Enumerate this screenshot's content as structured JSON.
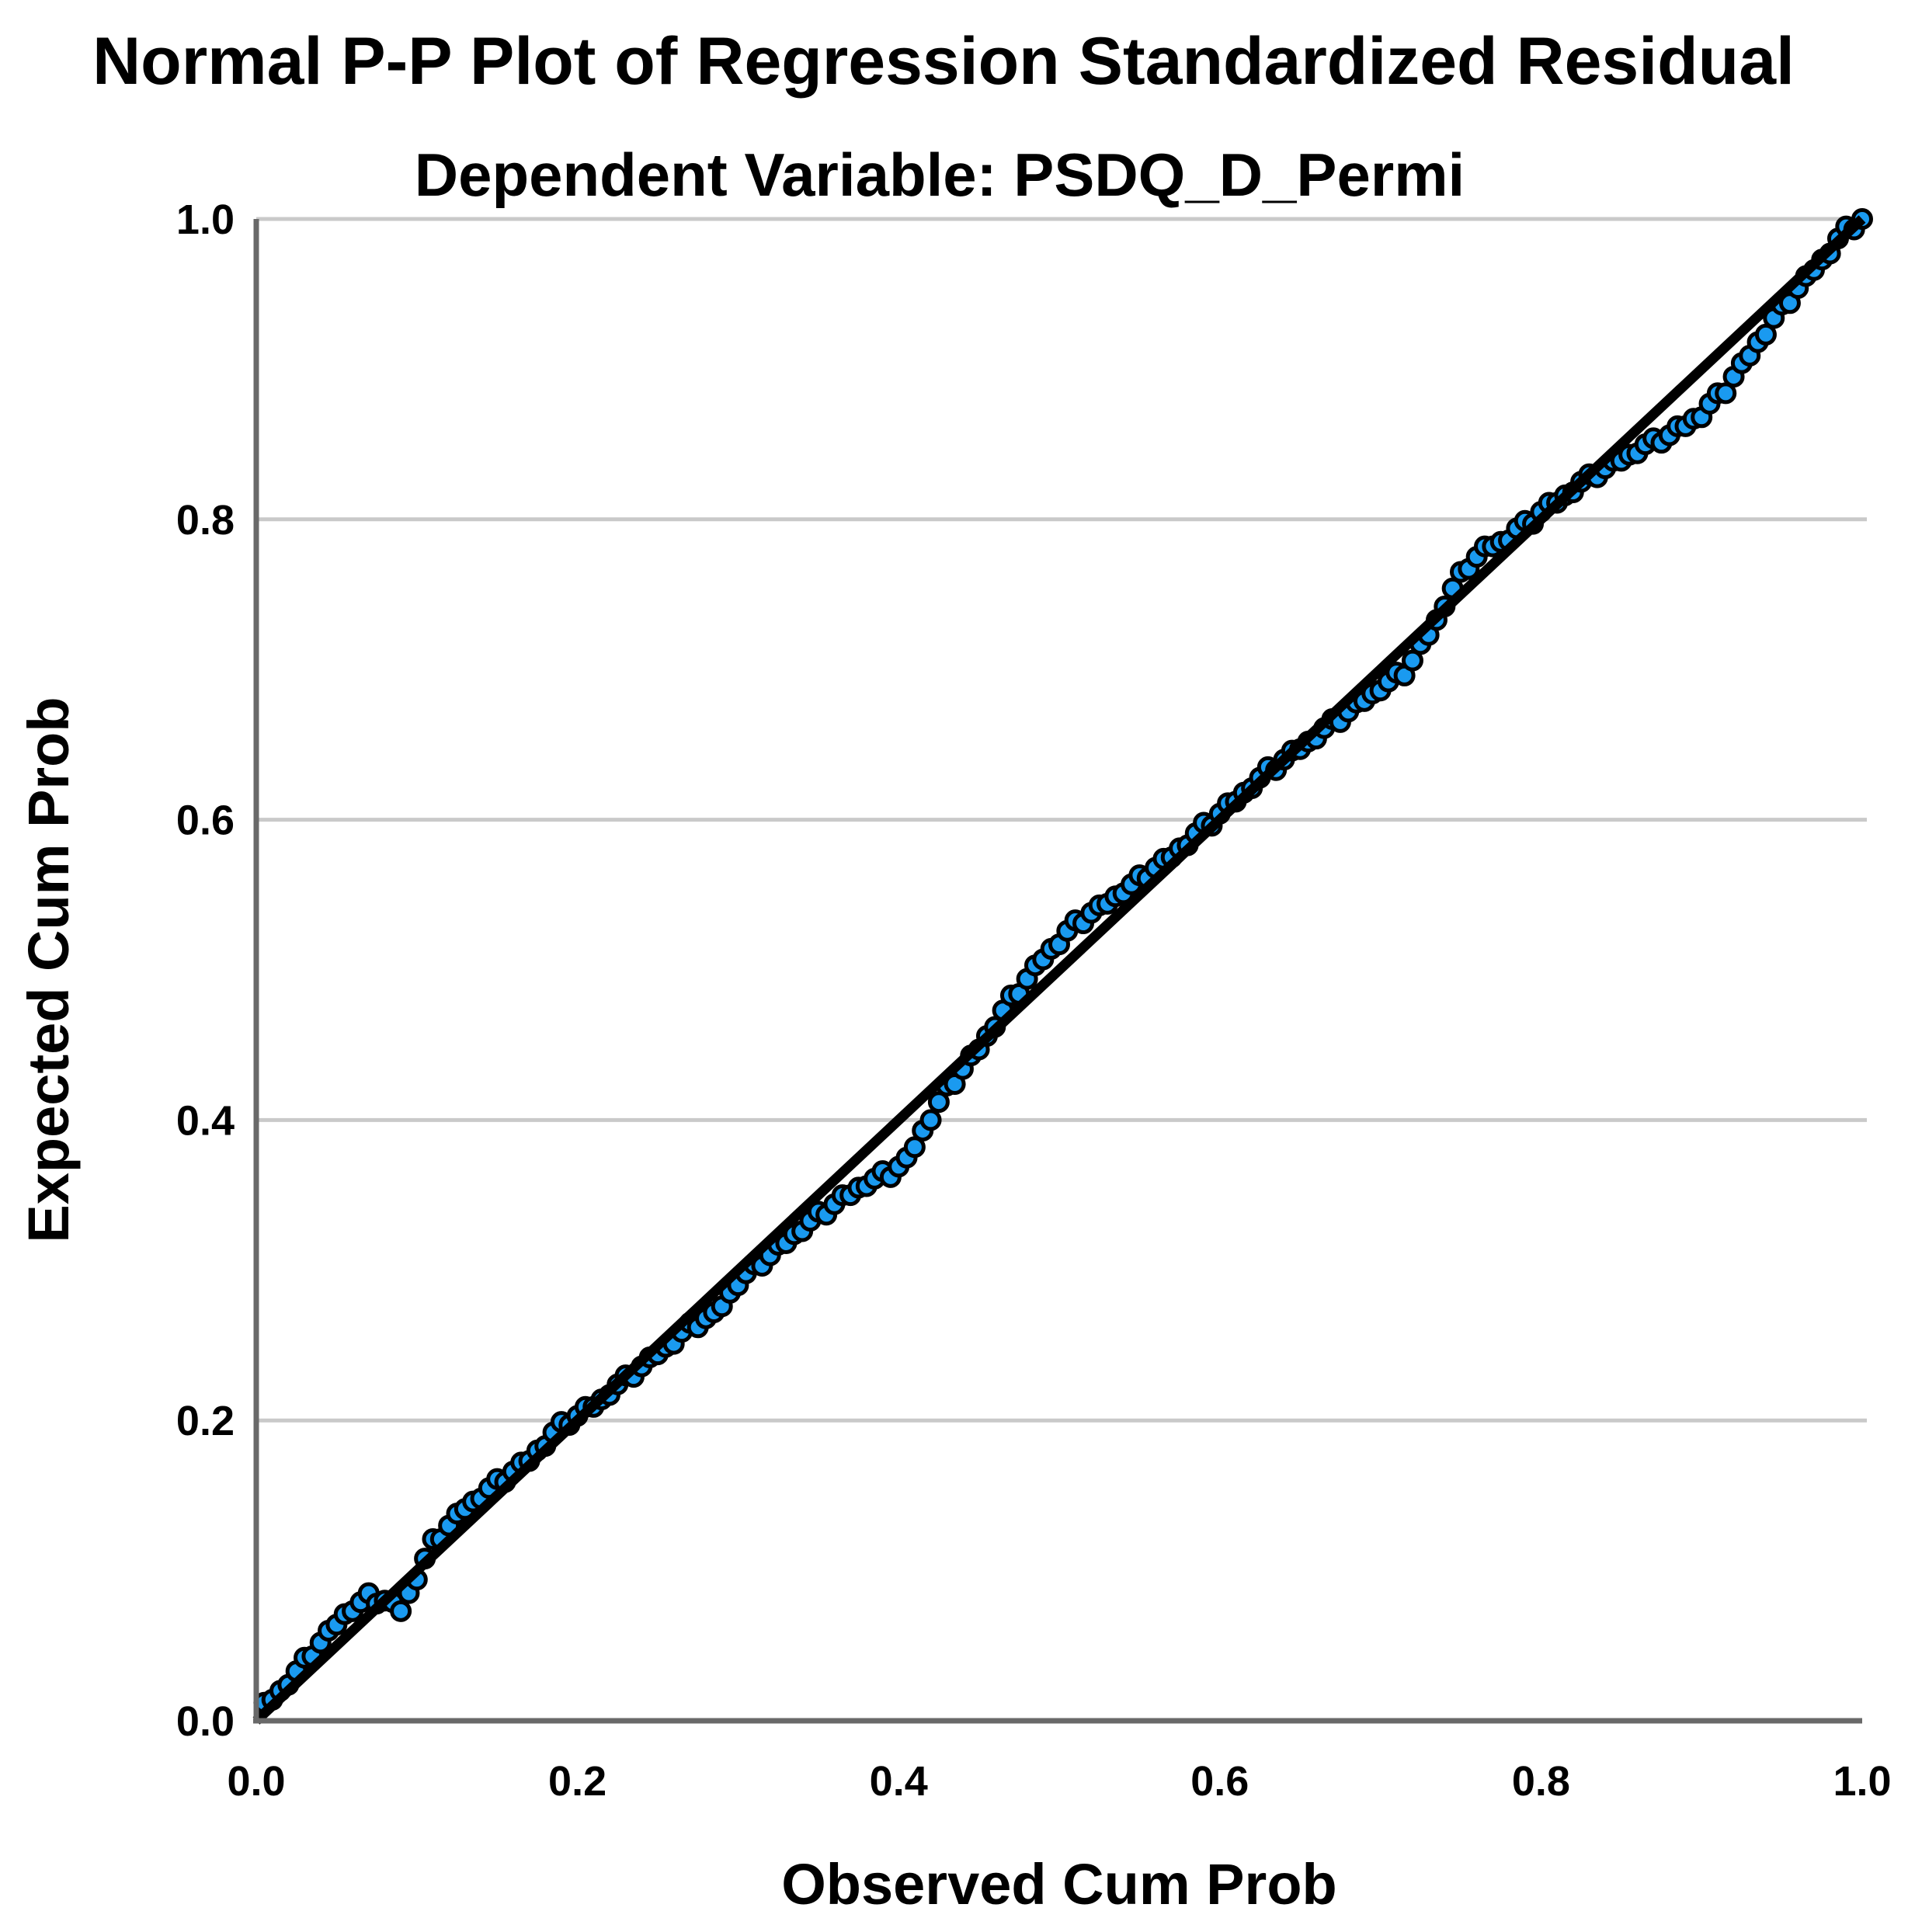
{
  "page": {
    "background": "#ffffff"
  },
  "chart_data": {
    "type": "scatter",
    "title": "Normal P-P Plot of Regression Standardized Residual",
    "subtitle": "Dependent Variable: PSDQ_D_Permi",
    "xlabel": "Observed Cum Prob",
    "ylabel": "Expected Cum Prob",
    "xlim": [
      0.0,
      1.0
    ],
    "ylim": [
      0.0,
      1.0
    ],
    "xticks": [
      "0.0",
      "0.2",
      "0.4",
      "0.6",
      "0.8",
      "1.0"
    ],
    "yticks": [
      "0.0",
      "0.2",
      "0.4",
      "0.6",
      "0.8",
      "1.0"
    ],
    "grid": "horizontal-only",
    "legend": "none",
    "colors": {
      "marker_fill": "#1a9af0",
      "marker_stroke": "#000000",
      "reference_line": "#000000",
      "grid_line": "#c9c9c9",
      "axis_line": "#696969",
      "text": "#000000"
    },
    "reference_line": {
      "from": [
        0.0,
        0.0
      ],
      "to": [
        1.0,
        1.0
      ]
    },
    "series": [
      {
        "name": "Standardized Residual",
        "points": [
          [
            0.005,
            0.012
          ],
          [
            0.01,
            0.014
          ],
          [
            0.015,
            0.02
          ],
          [
            0.02,
            0.024
          ],
          [
            0.025,
            0.033
          ],
          [
            0.03,
            0.042
          ],
          [
            0.035,
            0.043
          ],
          [
            0.04,
            0.052
          ],
          [
            0.045,
            0.06
          ],
          [
            0.05,
            0.064
          ],
          [
            0.055,
            0.071
          ],
          [
            0.06,
            0.073
          ],
          [
            0.065,
            0.079
          ],
          [
            0.07,
            0.085
          ],
          [
            0.075,
            0.078
          ],
          [
            0.08,
            0.08
          ],
          [
            0.085,
            0.079
          ],
          [
            0.09,
            0.073
          ],
          [
            0.095,
            0.085
          ],
          [
            0.1,
            0.094
          ],
          [
            0.105,
            0.108
          ],
          [
            0.11,
            0.121
          ],
          [
            0.115,
            0.121
          ],
          [
            0.12,
            0.13
          ],
          [
            0.125,
            0.138
          ],
          [
            0.13,
            0.141
          ],
          [
            0.135,
            0.146
          ],
          [
            0.14,
            0.148
          ],
          [
            0.145,
            0.155
          ],
          [
            0.15,
            0.161
          ],
          [
            0.155,
            0.159
          ],
          [
            0.16,
            0.166
          ],
          [
            0.165,
            0.172
          ],
          [
            0.17,
            0.173
          ],
          [
            0.175,
            0.18
          ],
          [
            0.18,
            0.183
          ],
          [
            0.185,
            0.192
          ],
          [
            0.19,
            0.199
          ],
          [
            0.195,
            0.197
          ],
          [
            0.2,
            0.203
          ],
          [
            0.205,
            0.209
          ],
          [
            0.21,
            0.209
          ],
          [
            0.215,
            0.214
          ],
          [
            0.22,
            0.217
          ],
          [
            0.225,
            0.224
          ],
          [
            0.23,
            0.23
          ],
          [
            0.235,
            0.229
          ],
          [
            0.24,
            0.236
          ],
          [
            0.245,
            0.242
          ],
          [
            0.25,
            0.244
          ],
          [
            0.255,
            0.249
          ],
          [
            0.26,
            0.251
          ],
          [
            0.265,
            0.259
          ],
          [
            0.27,
            0.265
          ],
          [
            0.275,
            0.262
          ],
          [
            0.28,
            0.268
          ],
          [
            0.285,
            0.272
          ],
          [
            0.29,
            0.276
          ],
          [
            0.295,
            0.285
          ],
          [
            0.3,
            0.29
          ],
          [
            0.305,
            0.298
          ],
          [
            0.31,
            0.304
          ],
          [
            0.315,
            0.303
          ],
          [
            0.32,
            0.31
          ],
          [
            0.325,
            0.317
          ],
          [
            0.33,
            0.318
          ],
          [
            0.335,
            0.324
          ],
          [
            0.34,
            0.326
          ],
          [
            0.345,
            0.333
          ],
          [
            0.35,
            0.339
          ],
          [
            0.355,
            0.337
          ],
          [
            0.36,
            0.344
          ],
          [
            0.365,
            0.35
          ],
          [
            0.37,
            0.35
          ],
          [
            0.375,
            0.355
          ],
          [
            0.38,
            0.356
          ],
          [
            0.385,
            0.361
          ],
          [
            0.39,
            0.366
          ],
          [
            0.395,
            0.362
          ],
          [
            0.4,
            0.369
          ],
          [
            0.405,
            0.375
          ],
          [
            0.41,
            0.382
          ],
          [
            0.415,
            0.393
          ],
          [
            0.42,
            0.4
          ],
          [
            0.425,
            0.412
          ],
          [
            0.43,
            0.423
          ],
          [
            0.435,
            0.424
          ],
          [
            0.44,
            0.434
          ],
          [
            0.445,
            0.443
          ],
          [
            0.45,
            0.447
          ],
          [
            0.455,
            0.456
          ],
          [
            0.46,
            0.462
          ],
          [
            0.465,
            0.473
          ],
          [
            0.47,
            0.483
          ],
          [
            0.475,
            0.484
          ],
          [
            0.48,
            0.494
          ],
          [
            0.485,
            0.503
          ],
          [
            0.49,
            0.507
          ],
          [
            0.495,
            0.514
          ],
          [
            0.5,
            0.517
          ],
          [
            0.505,
            0.526
          ],
          [
            0.51,
            0.533
          ],
          [
            0.515,
            0.531
          ],
          [
            0.52,
            0.538
          ],
          [
            0.525,
            0.543
          ],
          [
            0.53,
            0.544
          ],
          [
            0.535,
            0.549
          ],
          [
            0.54,
            0.551
          ],
          [
            0.545,
            0.557
          ],
          [
            0.55,
            0.563
          ],
          [
            0.555,
            0.561
          ],
          [
            0.56,
            0.568
          ],
          [
            0.565,
            0.574
          ],
          [
            0.57,
            0.575
          ],
          [
            0.575,
            0.581
          ],
          [
            0.58,
            0.583
          ],
          [
            0.585,
            0.591
          ],
          [
            0.59,
            0.598
          ],
          [
            0.595,
            0.596
          ],
          [
            0.6,
            0.604
          ],
          [
            0.605,
            0.611
          ],
          [
            0.61,
            0.612
          ],
          [
            0.615,
            0.618
          ],
          [
            0.62,
            0.621
          ],
          [
            0.625,
            0.628
          ],
          [
            0.63,
            0.635
          ],
          [
            0.635,
            0.633
          ],
          [
            0.64,
            0.64
          ],
          [
            0.645,
            0.646
          ],
          [
            0.65,
            0.647
          ],
          [
            0.655,
            0.652
          ],
          [
            0.66,
            0.654
          ],
          [
            0.665,
            0.661
          ],
          [
            0.67,
            0.667
          ],
          [
            0.675,
            0.665
          ],
          [
            0.68,
            0.672
          ],
          [
            0.685,
            0.678
          ],
          [
            0.69,
            0.679
          ],
          [
            0.695,
            0.684
          ],
          [
            0.7,
            0.686
          ],
          [
            0.705,
            0.692
          ],
          [
            0.71,
            0.698
          ],
          [
            0.715,
            0.696
          ],
          [
            0.72,
            0.706
          ],
          [
            0.725,
            0.717
          ],
          [
            0.73,
            0.723
          ],
          [
            0.735,
            0.733
          ],
          [
            0.74,
            0.742
          ],
          [
            0.745,
            0.754
          ],
          [
            0.75,
            0.765
          ],
          [
            0.755,
            0.767
          ],
          [
            0.76,
            0.775
          ],
          [
            0.765,
            0.782
          ],
          [
            0.77,
            0.782
          ],
          [
            0.775,
            0.785
          ],
          [
            0.78,
            0.786
          ],
          [
            0.785,
            0.794
          ],
          [
            0.79,
            0.799
          ],
          [
            0.795,
            0.797
          ],
          [
            0.8,
            0.805
          ],
          [
            0.805,
            0.811
          ],
          [
            0.81,
            0.811
          ],
          [
            0.815,
            0.816
          ],
          [
            0.82,
            0.818
          ],
          [
            0.825,
            0.825
          ],
          [
            0.83,
            0.83
          ],
          [
            0.835,
            0.828
          ],
          [
            0.84,
            0.834
          ],
          [
            0.845,
            0.839
          ],
          [
            0.85,
            0.839
          ],
          [
            0.855,
            0.843
          ],
          [
            0.86,
            0.844
          ],
          [
            0.865,
            0.85
          ],
          [
            0.87,
            0.854
          ],
          [
            0.875,
            0.851
          ],
          [
            0.88,
            0.856
          ],
          [
            0.885,
            0.862
          ],
          [
            0.89,
            0.862
          ],
          [
            0.895,
            0.867
          ],
          [
            0.9,
            0.868
          ],
          [
            0.905,
            0.877
          ],
          [
            0.91,
            0.884
          ],
          [
            0.915,
            0.884
          ],
          [
            0.92,
            0.895
          ],
          [
            0.925,
            0.904
          ],
          [
            0.93,
            0.909
          ],
          [
            0.935,
            0.918
          ],
          [
            0.94,
            0.923
          ],
          [
            0.945,
            0.934
          ],
          [
            0.95,
            0.943
          ],
          [
            0.955,
            0.944
          ],
          [
            0.96,
            0.954
          ],
          [
            0.965,
            0.962
          ],
          [
            0.97,
            0.966
          ],
          [
            0.975,
            0.973
          ],
          [
            0.98,
            0.977
          ],
          [
            0.985,
            0.987
          ],
          [
            0.99,
            0.995
          ],
          [
            0.995,
            0.993
          ],
          [
            1.0,
            1.0
          ]
        ]
      }
    ]
  }
}
